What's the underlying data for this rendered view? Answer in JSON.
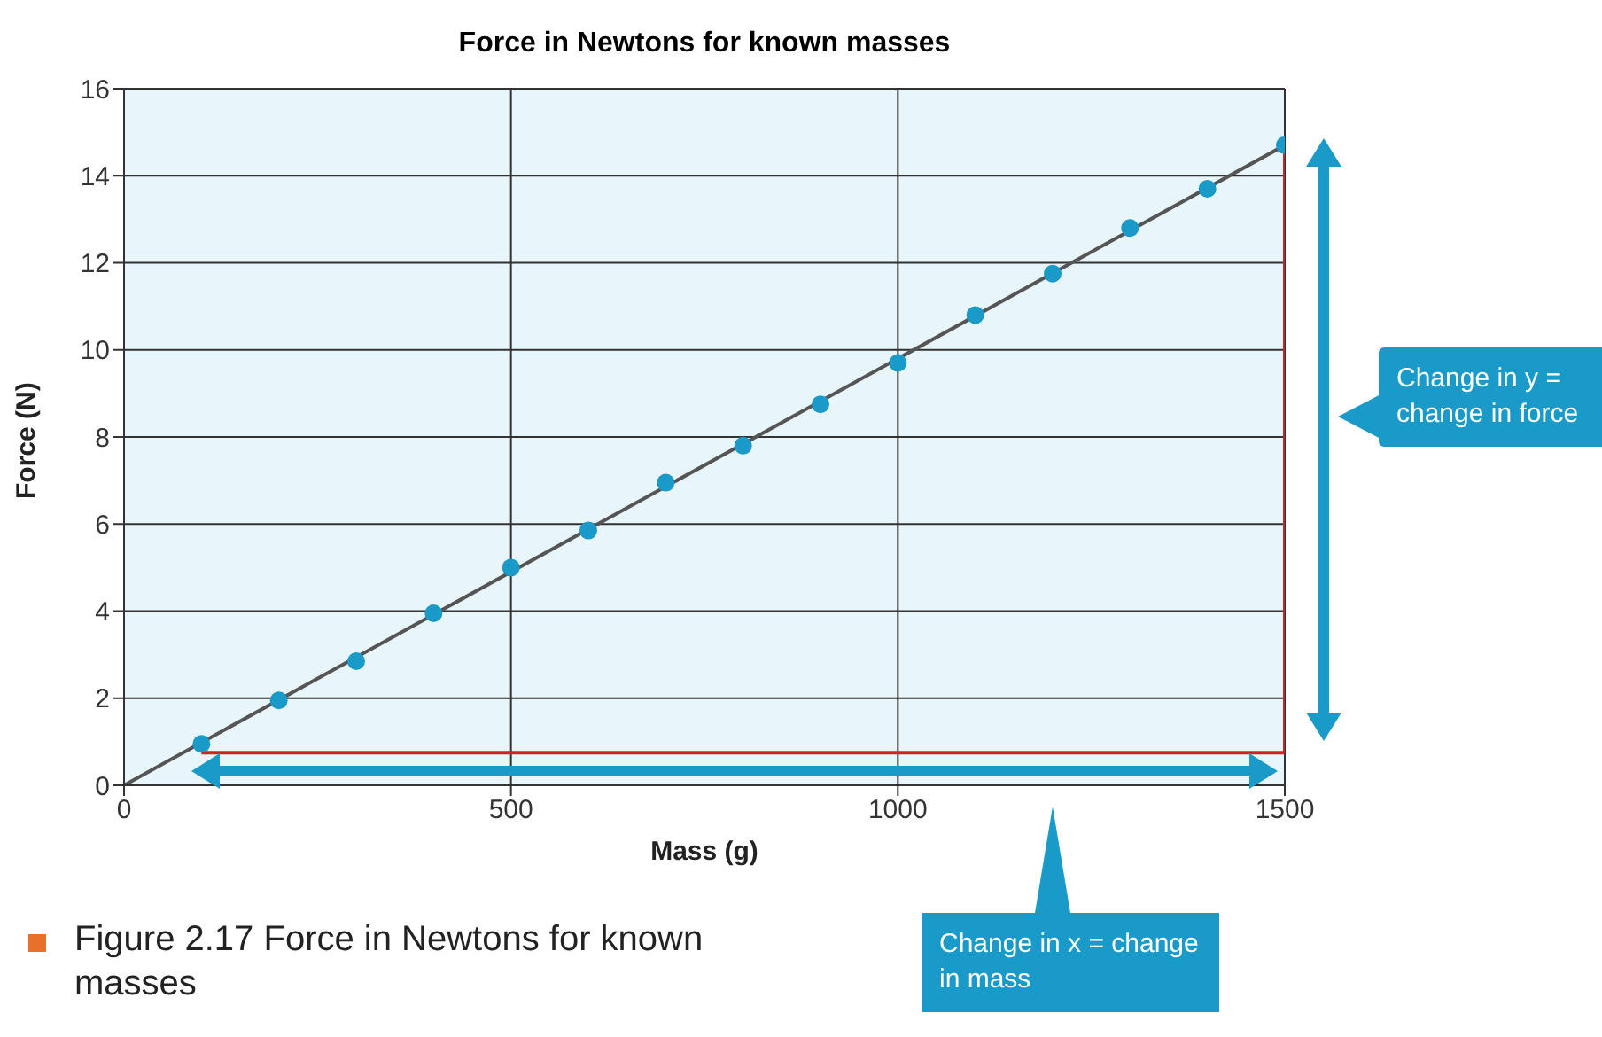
{
  "chart_data": {
    "type": "scatter",
    "title": "Force in Newtons for known masses",
    "xlabel": "Mass (g)",
    "ylabel": "Force (N)",
    "xlim": [
      0,
      1500
    ],
    "xticks": [
      0,
      500,
      1000,
      1500
    ],
    "ylim": [
      0,
      16
    ],
    "yticks": [
      0,
      2,
      4,
      6,
      8,
      10,
      12,
      14,
      16
    ],
    "grid": true,
    "line_style": "solid",
    "series": [
      {
        "type": "line",
        "marker": "none",
        "color": "#555555",
        "x": [
          0,
          1500
        ],
        "values": [
          0,
          14.7
        ]
      },
      {
        "type": "line",
        "marker": "none",
        "color": "#d0202a",
        "x": [
          100,
          1500
        ],
        "values": [
          0.75,
          0.75
        ]
      },
      {
        "type": "line",
        "marker": "none",
        "color": "#d0202a",
        "x": [
          1500,
          1500
        ],
        "values": [
          0.75,
          14.7
        ]
      },
      {
        "type": "scatter",
        "marker": "circle",
        "color": "#1a9ac9",
        "x": [
          100,
          200,
          300,
          400,
          500,
          600,
          700,
          800,
          900,
          1000,
          1100,
          1200,
          1300,
          1400,
          1500
        ],
        "values": [
          0.95,
          1.95,
          2.85,
          3.95,
          5.0,
          5.85,
          6.95,
          7.8,
          8.75,
          9.7,
          10.8,
          11.75,
          12.8,
          13.7,
          14.7
        ]
      }
    ],
    "annotations": [
      "Change in y = change in force",
      "Change in x = change in mass",
      "Figure 2.17 Force in Newtons for known masses"
    ]
  }
}
